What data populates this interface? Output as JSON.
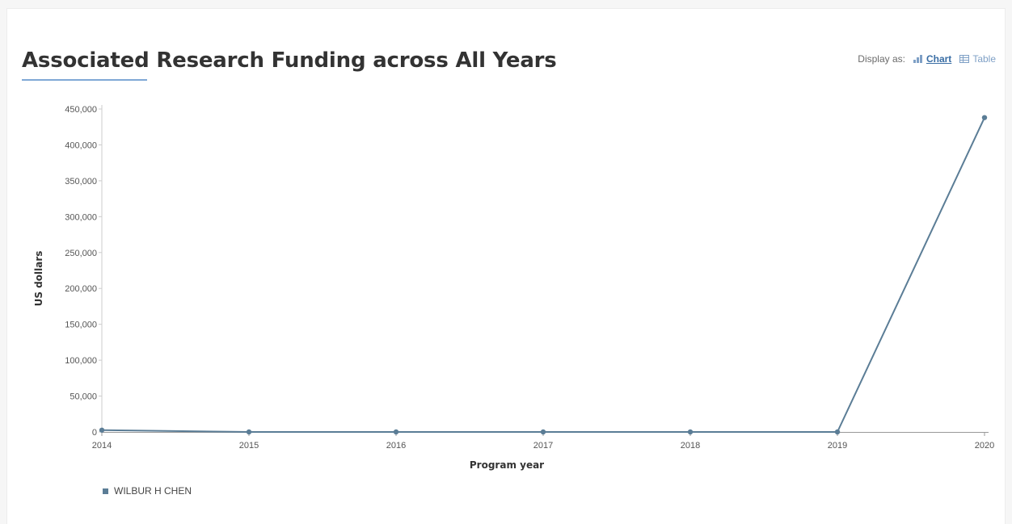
{
  "header": {
    "title": "Associated Research Funding across All Years",
    "display_as_label": "Display as:",
    "chart_label": "Chart",
    "table_label": "Table",
    "chart_icon": "bar-chart-icon",
    "table_icon": "table-icon"
  },
  "colors": {
    "series": "#5b7d96",
    "accent": "#3a6ea5",
    "axis": "#cccccc"
  },
  "chart_data": {
    "type": "line",
    "title": "Associated Research Funding across All Years",
    "xlabel": "Program year",
    "ylabel": "US dollars",
    "x": [
      2014,
      2015,
      2016,
      2017,
      2018,
      2019,
      2020
    ],
    "y_ticks": [
      0,
      50000,
      100000,
      150000,
      200000,
      250000,
      300000,
      350000,
      400000,
      450000
    ],
    "y_tick_labels": [
      "0",
      "50,000",
      "100,000",
      "150,000",
      "200,000",
      "250,000",
      "300,000",
      "350,000",
      "400,000",
      "450,000"
    ],
    "ylim": [
      0,
      450000
    ],
    "grid": false,
    "legend_position": "bottom-left",
    "series": [
      {
        "name": "WILBUR H CHEN",
        "values": [
          2500,
          0,
          0,
          0,
          0,
          0,
          438000
        ]
      }
    ]
  }
}
